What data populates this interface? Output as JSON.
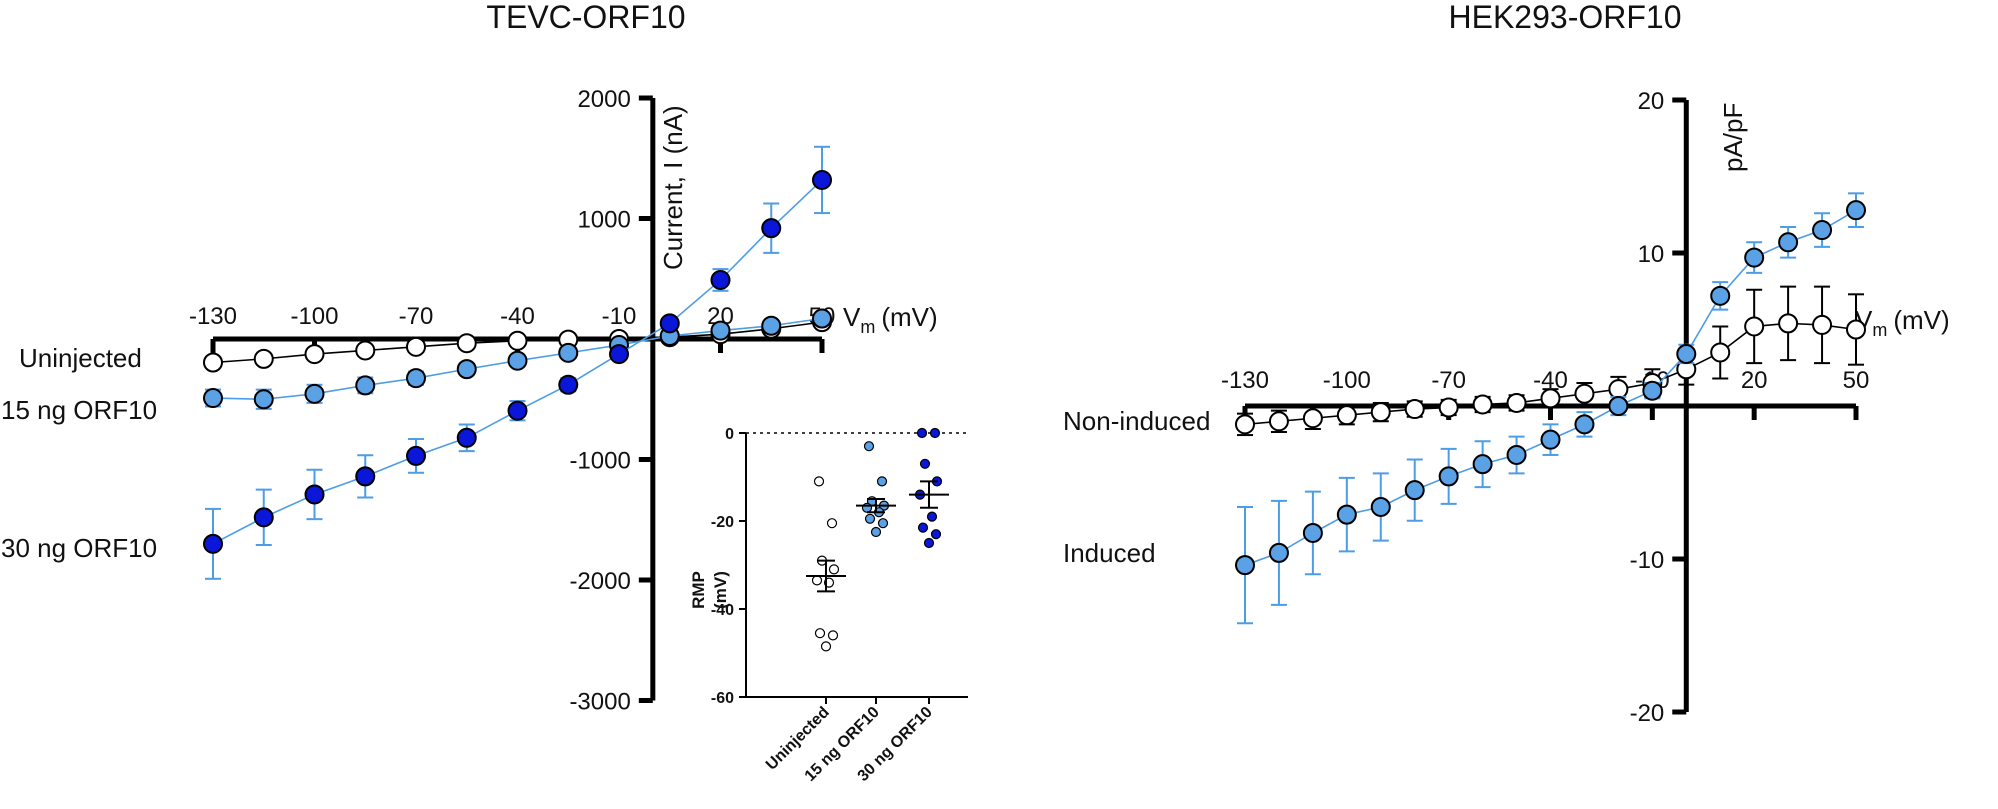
{
  "figure": {
    "panel_left_title": "TEVC-ORF10",
    "panel_right_title": "HEK293-ORF10"
  },
  "colors": {
    "open": "#ffffff",
    "light": "#5aa1e6",
    "dark": "#0a16d8",
    "errbar_blue": "#4d9ce6",
    "black": "#000000"
  },
  "chart_data": [
    {
      "id": "tevc_iv",
      "type": "line",
      "title": "TEVC-ORF10",
      "xlabel_main": "V",
      "xlabel_sub": "m",
      "xlabel_unit": "(mV)",
      "ylabel": "Current, I (nA)",
      "xlim": [
        -130,
        50
      ],
      "ylim": [
        -3000,
        2000
      ],
      "x_ticks": [
        -130,
        -100,
        -70,
        -40,
        -10,
        20,
        50
      ],
      "x_tick_labels": [
        "-130",
        "-100",
        "-70",
        "-40",
        "-10",
        "20",
        "50"
      ],
      "y_ticks": [
        2000,
        1000,
        -1000,
        -2000,
        -3000
      ],
      "y_tick_labels": [
        "2000",
        "1000",
        "-1000",
        "-2000",
        "-3000"
      ],
      "x": [
        -130,
        -115,
        -100,
        -85,
        -70,
        -55,
        -40,
        -25,
        -10,
        5,
        20,
        35,
        50
      ],
      "series": [
        {
          "name": "Uninjected",
          "style": "open",
          "values": [
            -195,
            -165,
            -125,
            -95,
            -65,
            -35,
            -15,
            -5,
            0,
            15,
            40,
            85,
            140
          ],
          "errors": [
            0,
            0,
            0,
            0,
            0,
            0,
            0,
            0,
            0,
            0,
            0,
            0,
            0
          ]
        },
        {
          "name": "15 ng ORF10",
          "style": "light",
          "values": [
            -490,
            -500,
            -455,
            -385,
            -325,
            -250,
            -180,
            -115,
            -50,
            25,
            70,
            110,
            170
          ],
          "errors": [
            70,
            80,
            75,
            65,
            55,
            45,
            35,
            25,
            15,
            10,
            15,
            20,
            30
          ]
        },
        {
          "name": "30 ng ORF10",
          "style": "dark",
          "values": [
            -1700,
            -1480,
            -1290,
            -1140,
            -970,
            -820,
            -595,
            -380,
            -125,
            130,
            490,
            920,
            1320
          ],
          "errors": [
            290,
            230,
            205,
            175,
            140,
            110,
            80,
            55,
            30,
            30,
            90,
            205,
            275
          ]
        }
      ],
      "legend_labels": [
        "Uninjected",
        "15 ng ORF10",
        "30 ng ORF10"
      ]
    },
    {
      "id": "rmp_inset",
      "type": "scatter",
      "ylabel_line1": "RMP",
      "ylabel_line2": "(mV)",
      "ylim": [
        -60,
        0
      ],
      "y_ticks": [
        0,
        -20,
        -40,
        -60
      ],
      "y_tick_labels": [
        "0",
        "-20",
        "-40",
        "-60"
      ],
      "categories": [
        "Uninjected",
        "15 ng ORF10",
        "30 ng ORF10"
      ],
      "groups": [
        {
          "name": "Uninjected",
          "style": "open",
          "mean": -32.5,
          "sem": 3.5,
          "points": [
            -11,
            -20.5,
            -29,
            -31,
            -33.5,
            -34,
            -45.5,
            -46,
            -48.5
          ]
        },
        {
          "name": "15 ng ORF10",
          "style": "light",
          "mean": -16.5,
          "sem": 1.5,
          "points": [
            -3,
            -11,
            -15.5,
            -16.5,
            -17,
            -18,
            -19.5,
            -20.5,
            -22.5
          ]
        },
        {
          "name": "30 ng ORF10",
          "style": "dark",
          "mean": -14,
          "sem": 3,
          "points": [
            0,
            0,
            -7,
            -11,
            -14,
            -19,
            -21.5,
            -23,
            -25
          ]
        }
      ]
    },
    {
      "id": "hek_iv",
      "type": "line",
      "title": "HEK293-ORF10",
      "xlabel_main": "V",
      "xlabel_sub": "m",
      "xlabel_unit": "(mV)",
      "ylabel": "pA/pF",
      "xlim": [
        -130,
        50
      ],
      "ylim": [
        -20,
        20
      ],
      "x_ticks": [
        -130,
        -100,
        -70,
        -40,
        -10,
        20,
        50
      ],
      "x_tick_labels": [
        "-130",
        "-100",
        "-70",
        "-40",
        "-10",
        "20",
        "50"
      ],
      "y_ticks": [
        20,
        10,
        -10,
        -20
      ],
      "y_tick_labels": [
        "20",
        "10",
        "-10",
        "-20"
      ],
      "x": [
        -130,
        -120,
        -110,
        -100,
        -90,
        -80,
        -70,
        -60,
        -50,
        -40,
        -30,
        -20,
        -10,
        0,
        10,
        20,
        30,
        40,
        50
      ],
      "series": [
        {
          "name": "Non-induced",
          "style": "open",
          "values": [
            -1.2,
            -1.0,
            -0.8,
            -0.6,
            -0.4,
            -0.2,
            -0.1,
            0.1,
            0.2,
            0.5,
            0.8,
            1.1,
            1.5,
            2.4,
            3.5,
            5.2,
            5.4,
            5.3,
            5.0
          ],
          "errors": [
            0.7,
            0.7,
            0.7,
            0.6,
            0.6,
            0.5,
            0.5,
            0.5,
            0.5,
            0.6,
            0.7,
            0.8,
            0.9,
            1.0,
            1.7,
            2.4,
            2.4,
            2.5,
            2.3
          ]
        },
        {
          "name": "Induced",
          "style": "light",
          "values": [
            -10.4,
            -9.6,
            -8.3,
            -7.1,
            -6.6,
            -5.5,
            -4.6,
            -3.8,
            -3.2,
            -2.2,
            -1.2,
            0.0,
            1.0,
            3.4,
            7.2,
            9.7,
            10.7,
            11.5,
            12.8
          ],
          "errors": [
            3.8,
            3.4,
            2.7,
            2.4,
            2.2,
            2.0,
            1.8,
            1.5,
            1.2,
            1.0,
            0.8,
            0.6,
            0.5,
            0.6,
            0.9,
            1.0,
            1.0,
            1.1,
            1.1
          ]
        }
      ],
      "legend_labels": [
        "Non-induced",
        "Induced"
      ]
    }
  ]
}
